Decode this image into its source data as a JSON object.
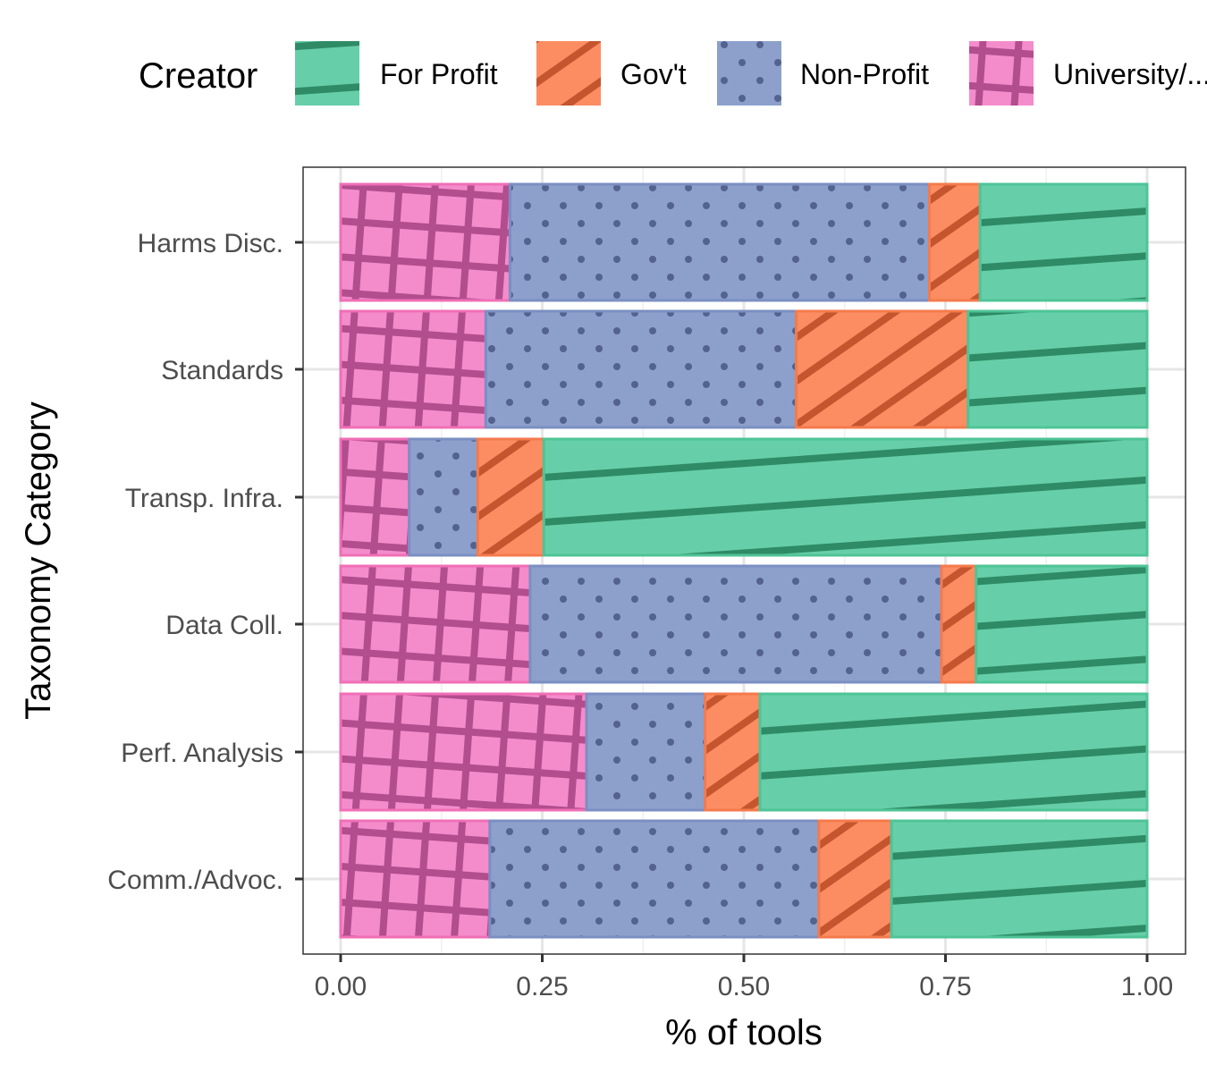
{
  "chart_data": {
    "type": "bar",
    "orientation": "horizontal",
    "stacked": true,
    "position": "fill",
    "xlabel": "% of tools",
    "ylabel": "Taxonomy Category",
    "xlim": [
      0,
      1
    ],
    "xticks": [
      "0.00",
      "0.25",
      "0.50",
      "0.75",
      "1.00"
    ],
    "grid": true,
    "legend_position": "top",
    "legend_title": "Creator",
    "categories": [
      "Harms Disc.",
      "Standards",
      "Transp. Infra.",
      "Data Coll.",
      "Perf. Analysis",
      "Comm./Advoc."
    ],
    "series": [
      {
        "name": "University/...",
        "color": "#F48CCB",
        "pattern": "grid-hatch",
        "values": [
          0.21,
          0.18,
          0.085,
          0.235,
          0.305,
          0.185
        ]
      },
      {
        "name": "Non-Profit",
        "color": "#8DA0CB",
        "pattern": "dots",
        "values": [
          0.52,
          0.385,
          0.085,
          0.51,
          0.147,
          0.408
        ]
      },
      {
        "name": "Gov't",
        "color": "#FC8D62",
        "pattern": "diagonal-stripes",
        "values": [
          0.063,
          0.213,
          0.082,
          0.043,
          0.068,
          0.09
        ]
      },
      {
        "name": "For Profit",
        "color": "#66CFA9",
        "pattern": "shallow-stripes",
        "values": [
          0.207,
          0.222,
          0.748,
          0.212,
          0.48,
          0.317
        ]
      }
    ]
  }
}
